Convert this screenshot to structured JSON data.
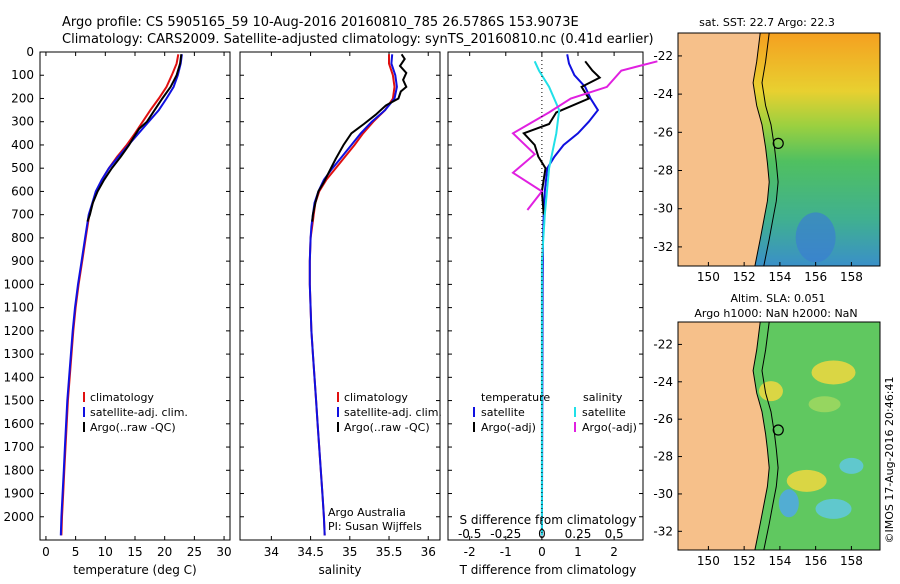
{
  "header": {
    "line1": "Argo profile: CS 5905165_59 10-Aug-2016 20160810_785 26.5786S 153.9073E",
    "line2": "Climatology: CARS2009. Satellite-adjusted climatology: synTS_20160810.nc (0.41d earlier)"
  },
  "colors": {
    "climatology": "#e01010",
    "satellite": "#1010e0",
    "argo": "#000000",
    "sal_satellite": "#20e0e8",
    "sal_argo": "#e020e0",
    "land": "#f6c08a"
  },
  "chart_data": [
    {
      "type": "line",
      "xlabel": "temperature (deg C)",
      "ylabel": "",
      "xlim": [
        -1,
        31
      ],
      "ylim": [
        2100,
        0
      ],
      "xticks": [
        "0",
        "5",
        "10",
        "15",
        "20",
        "25",
        "30"
      ],
      "yticks": [
        "0",
        "100",
        "200",
        "300",
        "400",
        "500",
        "600",
        "700",
        "800",
        "900",
        "1000",
        "1100",
        "1200",
        "1300",
        "1400",
        "1500",
        "1600",
        "1700",
        "1800",
        "1900",
        "2000"
      ],
      "legend": {
        "placement": "bottom-center",
        "entries": [
          "climatology",
          "satellite-adj. clim.",
          "Argo(..raw -QC)"
        ]
      },
      "series": [
        {
          "name": "climatology",
          "points": [
            [
              22.3,
              10
            ],
            [
              22.0,
              50
            ],
            [
              21.2,
              100
            ],
            [
              20.3,
              150
            ],
            [
              19.0,
              200
            ],
            [
              17.6,
              250
            ],
            [
              16.3,
              300
            ],
            [
              15.0,
              350
            ],
            [
              13.6,
              400
            ],
            [
              12.0,
              450
            ],
            [
              10.6,
              500
            ],
            [
              9.4,
              550
            ],
            [
              8.5,
              600
            ],
            [
              7.9,
              650
            ],
            [
              7.3,
              700
            ],
            [
              6.7,
              800
            ],
            [
              6.1,
              900
            ],
            [
              5.5,
              1000
            ],
            [
              5.0,
              1100
            ],
            [
              4.6,
              1200
            ],
            [
              4.3,
              1300
            ],
            [
              4.0,
              1400
            ],
            [
              3.7,
              1500
            ],
            [
              3.5,
              1600
            ],
            [
              3.3,
              1700
            ],
            [
              3.1,
              1800
            ],
            [
              2.9,
              1900
            ],
            [
              2.7,
              2000
            ],
            [
              2.6,
              2080
            ]
          ]
        },
        {
          "name": "satellite-adj. clim.",
          "points": [
            [
              22.9,
              10
            ],
            [
              22.7,
              50
            ],
            [
              22.2,
              100
            ],
            [
              21.5,
              150
            ],
            [
              20.3,
              200
            ],
            [
              19.0,
              250
            ],
            [
              17.3,
              300
            ],
            [
              15.6,
              350
            ],
            [
              13.9,
              400
            ],
            [
              12.2,
              450
            ],
            [
              10.6,
              500
            ],
            [
              9.4,
              550
            ],
            [
              8.4,
              600
            ],
            [
              7.8,
              650
            ],
            [
              7.2,
              700
            ],
            [
              6.6,
              800
            ],
            [
              6.0,
              900
            ],
            [
              5.4,
              1000
            ],
            [
              4.9,
              1100
            ],
            [
              4.5,
              1200
            ],
            [
              4.2,
              1300
            ],
            [
              3.9,
              1400
            ],
            [
              3.6,
              1500
            ],
            [
              3.4,
              1600
            ],
            [
              3.2,
              1700
            ],
            [
              3.0,
              1800
            ],
            [
              2.8,
              1900
            ],
            [
              2.6,
              2000
            ],
            [
              2.5,
              2080
            ]
          ]
        },
        {
          "name": "Argo(..raw -QC)",
          "points": [
            [
              22.8,
              10
            ],
            [
              22.6,
              50
            ],
            [
              22.0,
              100
            ],
            [
              21.0,
              150
            ],
            [
              19.6,
              200
            ],
            [
              18.3,
              250
            ],
            [
              17.0,
              300
            ],
            [
              15.7,
              330
            ],
            [
              14.7,
              370
            ],
            [
              14.0,
              400
            ],
            [
              12.6,
              450
            ],
            [
              11.1,
              500
            ],
            [
              9.8,
              550
            ],
            [
              8.7,
              600
            ],
            [
              7.9,
              650
            ],
            [
              7.4,
              700
            ],
            [
              7.0,
              730
            ]
          ]
        }
      ]
    },
    {
      "type": "line",
      "xlabel": "salinity",
      "ylabel": "",
      "xlim": [
        33.6,
        36.15
      ],
      "ylim": [
        2100,
        0
      ],
      "xticks": [
        "34",
        "34.5",
        "35",
        "35.5",
        "36"
      ],
      "legend": {
        "placement": "bottom-right",
        "entries": [
          "climatology",
          "satellite-adj. clim.",
          "Argo(..raw -QC)"
        ]
      },
      "annotation": [
        "Argo Australia",
        "PI: Susan Wijffels"
      ],
      "series": [
        {
          "name": "climatology",
          "points": [
            [
              35.5,
              10
            ],
            [
              35.5,
              50
            ],
            [
              35.55,
              100
            ],
            [
              35.57,
              150
            ],
            [
              35.55,
              200
            ],
            [
              35.45,
              250
            ],
            [
              35.3,
              300
            ],
            [
              35.17,
              350
            ],
            [
              35.06,
              400
            ],
            [
              34.94,
              450
            ],
            [
              34.82,
              500
            ],
            [
              34.7,
              550
            ],
            [
              34.61,
              600
            ],
            [
              34.56,
              650
            ],
            [
              34.54,
              700
            ],
            [
              34.52,
              750
            ],
            [
              34.5,
              800
            ],
            [
              34.49,
              900
            ],
            [
              34.49,
              1000
            ],
            [
              34.5,
              1100
            ],
            [
              34.51,
              1200
            ],
            [
              34.53,
              1300
            ],
            [
              34.55,
              1400
            ],
            [
              34.57,
              1500
            ],
            [
              34.59,
              1600
            ],
            [
              34.61,
              1700
            ],
            [
              34.63,
              1800
            ],
            [
              34.65,
              1900
            ],
            [
              34.67,
              2000
            ],
            [
              34.68,
              2080
            ]
          ]
        },
        {
          "name": "satellite-adj. clim.",
          "points": [
            [
              35.54,
              10
            ],
            [
              35.53,
              50
            ],
            [
              35.58,
              100
            ],
            [
              35.6,
              150
            ],
            [
              35.57,
              200
            ],
            [
              35.45,
              250
            ],
            [
              35.28,
              300
            ],
            [
              35.14,
              350
            ],
            [
              35.02,
              400
            ],
            [
              34.9,
              450
            ],
            [
              34.78,
              500
            ],
            [
              34.67,
              550
            ],
            [
              34.6,
              600
            ],
            [
              34.55,
              650
            ],
            [
              34.53,
              700
            ],
            [
              34.51,
              750
            ],
            [
              34.5,
              800
            ],
            [
              34.49,
              900
            ],
            [
              34.49,
              1000
            ],
            [
              34.5,
              1100
            ],
            [
              34.51,
              1200
            ],
            [
              34.53,
              1300
            ],
            [
              34.55,
              1400
            ],
            [
              34.57,
              1500
            ],
            [
              34.59,
              1600
            ],
            [
              34.61,
              1700
            ],
            [
              34.63,
              1800
            ],
            [
              34.65,
              1900
            ],
            [
              34.67,
              2000
            ],
            [
              34.68,
              2080
            ]
          ]
        },
        {
          "name": "Argo(..raw -QC)",
          "points": [
            [
              35.66,
              10
            ],
            [
              35.7,
              30
            ],
            [
              35.64,
              60
            ],
            [
              35.72,
              90
            ],
            [
              35.68,
              120
            ],
            [
              35.72,
              150
            ],
            [
              35.65,
              170
            ],
            [
              35.62,
              200
            ],
            [
              35.46,
              230
            ],
            [
              35.33,
              270
            ],
            [
              35.18,
              310
            ],
            [
              35.02,
              350
            ],
            [
              34.92,
              400
            ],
            [
              34.82,
              460
            ],
            [
              34.73,
              520
            ],
            [
              34.67,
              560
            ],
            [
              34.6,
              600
            ],
            [
              34.56,
              650
            ],
            [
              34.53,
              700
            ],
            [
              34.52,
              730
            ]
          ]
        }
      ]
    },
    {
      "type": "line",
      "xlabel": "T difference from climatology",
      "ylabel": "",
      "xlim": [
        -2.6,
        2.8
      ],
      "ylim": [
        2100,
        0
      ],
      "xticks": [
        "-2",
        "-1",
        "0",
        "1",
        "2"
      ],
      "top_xlabel": "S difference from climatology",
      "top_xticks": [
        "-0.5",
        "-0.25",
        "0",
        "0.25",
        "0.5"
      ],
      "legend": {
        "placement": "bottom",
        "entries": [
          "temperature",
          "satellite",
          "Argo(-adj)",
          "salinity",
          "satellite",
          "Argo(-adj)"
        ]
      },
      "series": [
        {
          "name": "satellite",
          "points": [
            [
              0.7,
              10
            ],
            [
              0.75,
              50
            ],
            [
              0.9,
              100
            ],
            [
              1.2,
              150
            ],
            [
              1.35,
              200
            ],
            [
              1.55,
              250
            ],
            [
              1.3,
              300
            ],
            [
              1.0,
              350
            ],
            [
              0.6,
              400
            ],
            [
              0.35,
              450
            ],
            [
              0.15,
              500
            ],
            [
              0.08,
              600
            ],
            [
              0.05,
              700
            ],
            [
              0.03,
              800
            ],
            [
              0.02,
              1000
            ],
            [
              0.01,
              1500
            ],
            [
              0.0,
              2080
            ]
          ]
        },
        {
          "name": "Argo(-adj)",
          "points": [
            [
              1.2,
              40
            ],
            [
              1.4,
              80
            ],
            [
              1.6,
              110
            ],
            [
              1.1,
              150
            ],
            [
              1.3,
              200
            ],
            [
              0.4,
              260
            ],
            [
              0.2,
              310
            ],
            [
              -0.5,
              350
            ],
            [
              -0.2,
              400
            ],
            [
              -0.1,
              450
            ],
            [
              0.1,
              500
            ],
            [
              0.0,
              600
            ],
            [
              0.05,
              700
            ]
          ]
        },
        {
          "name": "satellite (salinity)",
          "points": [
            [
              -0.05,
              40
            ],
            [
              -0.02,
              80
            ],
            [
              0.05,
              150
            ],
            [
              0.12,
              250
            ],
            [
              0.1,
              350
            ],
            [
              0.05,
              500
            ],
            [
              0.02,
              700
            ],
            [
              0.0,
              900
            ],
            [
              0.0,
              2080
            ]
          ]
        },
        {
          "name": "Argo(-adj) (salinity)",
          "points": [
            [
              0.8,
              40
            ],
            [
              0.55,
              80
            ],
            [
              0.45,
              150
            ],
            [
              0.2,
              200
            ],
            [
              0.05,
              260
            ],
            [
              -0.2,
              350
            ],
            [
              -0.05,
              440
            ],
            [
              -0.2,
              520
            ],
            [
              0.0,
              600
            ],
            [
              -0.1,
              680
            ]
          ]
        }
      ]
    },
    {
      "type": "heatmap",
      "title": "sat. SST: 22.7 Argo: 22.3",
      "xticks": [
        "150",
        "152",
        "154",
        "156",
        "158"
      ],
      "yticks": [
        "-22",
        "-24",
        "-26",
        "-28",
        "-30",
        "-32"
      ],
      "xlim": [
        148.3,
        159.6
      ],
      "ylim": [
        -33.0,
        -20.8
      ]
    },
    {
      "type": "heatmap",
      "title": "Altim. SLA: 0.051",
      "subtitle": "Argo h1000: NaN h2000: NaN",
      "xticks": [
        "150",
        "152",
        "154",
        "156",
        "158"
      ],
      "yticks": [
        "-22",
        "-24",
        "-26",
        "-28",
        "-30",
        "-32"
      ],
      "xlim": [
        148.3,
        159.6
      ],
      "ylim": [
        -33.0,
        -20.8
      ]
    }
  ],
  "credit": "©IMOS 17-Aug-2016 20:46:41"
}
